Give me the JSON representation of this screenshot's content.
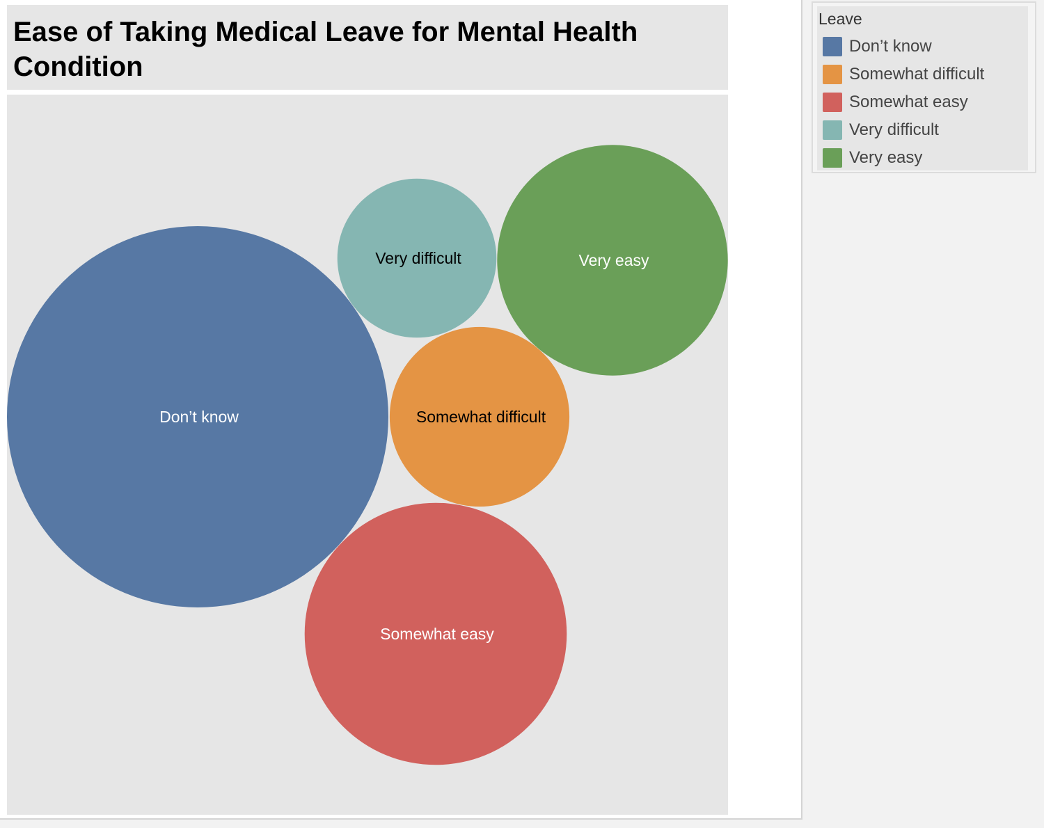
{
  "chart_data": {
    "type": "bubble",
    "title": "Ease of Taking Medical Leave for Mental Health Condition",
    "legend_title": "Leave",
    "categories": [
      "Don’t know",
      "Somewhat difficult",
      "Somewhat easy",
      "Very difficult",
      "Very easy"
    ],
    "values": [
      563,
      125,
      266,
      98,
      206
    ],
    "colors": [
      "#5778a4",
      "#e49444",
      "#d1615d",
      "#85b6b2",
      "#6a9f58"
    ],
    "label_colors": [
      "#ffffff",
      "#000000",
      "#ffffff",
      "#000000",
      "#ffffff"
    ],
    "legend_placement": "top-right"
  }
}
